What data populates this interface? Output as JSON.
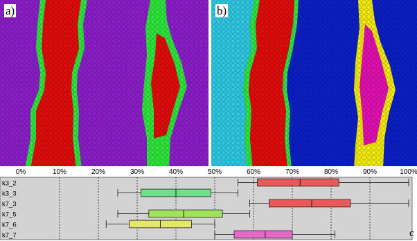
{
  "figure": {
    "panel_a_label": "a)",
    "panel_b_label": "b)",
    "panel_c_label": "c",
    "colors": {
      "purple": "#8a1ec8",
      "red": "#e00c0c",
      "green": "#2ee33c",
      "cyan": "#2fc6e0",
      "blue": "#0b1fc4",
      "yellow": "#f0e80f",
      "magenta": "#e010b0",
      "panel_bg": "#c8c8c8",
      "chart_bg": "#d3d3d3"
    }
  },
  "chart_data": {
    "type": "box",
    "x_unit": "%",
    "xlim": [
      0,
      100
    ],
    "x_ticks": [
      "0%",
      "10%",
      "20%",
      "30%",
      "40%",
      "50%",
      "60%",
      "70%",
      "80%",
      "90%",
      "100%"
    ],
    "grid": "vertical dashed lines at ticks",
    "series": [
      {
        "name": "k3_2",
        "color": "#e85a5a",
        "whisker_low": 56,
        "q1": 61,
        "median": 72,
        "q3": 82,
        "whisker_high": 100
      },
      {
        "name": "k3_3",
        "color": "#6ee08a",
        "whisker_low": 25,
        "q1": 31,
        "median": 40,
        "q3": 49,
        "whisker_high": 56
      },
      {
        "name": "k7_3",
        "color": "#e85a5a",
        "whisker_low": 59,
        "q1": 64,
        "median": 75,
        "q3": 85,
        "whisker_high": 100
      },
      {
        "name": "k7_5",
        "color": "#9fe35a",
        "whisker_low": 25,
        "q1": 33,
        "median": 42,
        "q3": 52,
        "whisker_high": 59
      },
      {
        "name": "k7_6",
        "color": "#e6e66a",
        "whisker_low": 22,
        "q1": 28,
        "median": 36,
        "q3": 44,
        "whisker_high": 50
      },
      {
        "name": "k7_7",
        "color": "#e668c8",
        "whisker_low": 50,
        "q1": 55,
        "median": 63,
        "q3": 70,
        "whisker_high": 81
      }
    ]
  }
}
